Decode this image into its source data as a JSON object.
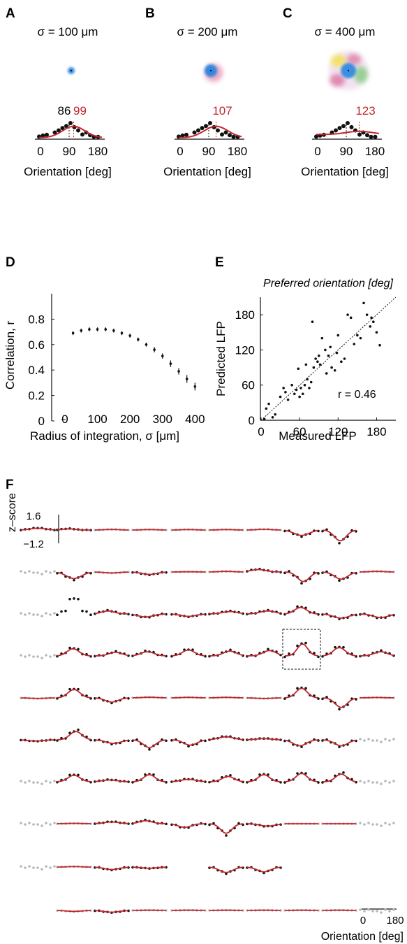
{
  "colors": {
    "fit": "#c0272d",
    "data": "#111111",
    "excluded": "#b8b8b8",
    "pref_line_measured": "#111111",
    "pref_line_predicted": "#c0272d",
    "rf_blue": "#2a86e0",
    "rf_magenta": "#d0427a",
    "rf_yellow": "#f2e24a",
    "rf_green": "#5fc25a"
  },
  "panels_abc": [
    {
      "letter": "A",
      "title": "σ = 100 μm",
      "measured_pref": "86",
      "predicted_pref": "99",
      "measured_pref_value": 86,
      "predicted_pref_value": 99,
      "x_ticks": [
        "0",
        "90",
        "180"
      ],
      "xlabel": "Orientation [deg]",
      "rf_spread": 0.15,
      "fit_baseline": 0.0,
      "fit_amplitude": 0.78,
      "fit_width_deg": 32
    },
    {
      "letter": "B",
      "title": "σ = 200 μm",
      "measured_pref": "",
      "predicted_pref": "107",
      "measured_pref_value": 86,
      "predicted_pref_value": 107,
      "x_ticks": [
        "0",
        "90",
        "180"
      ],
      "xlabel": "Orientation [deg]",
      "rf_spread": 0.4,
      "fit_baseline": 0.0,
      "fit_amplitude": 0.78,
      "fit_width_deg": 34
    },
    {
      "letter": "C",
      "title": "σ = 400 μm",
      "measured_pref": "",
      "predicted_pref": "123",
      "measured_pref_value": 86,
      "predicted_pref_value": 123,
      "x_ticks": [
        "0",
        "90",
        "180"
      ],
      "xlabel": "Orientation [deg]",
      "rf_spread": 1.0,
      "fit_baseline": 0.22,
      "fit_amplitude": 0.22,
      "fit_width_deg": 38
    }
  ],
  "tuning_points_abc": [
    {
      "x": 0,
      "y": 0.08
    },
    {
      "x": 11,
      "y": 0.15
    },
    {
      "x": 22,
      "y": 0.2
    },
    {
      "x": 45,
      "y": 0.36
    },
    {
      "x": 56,
      "y": 0.5
    },
    {
      "x": 67,
      "y": 0.66
    },
    {
      "x": 78,
      "y": 0.8
    },
    {
      "x": 90,
      "y": 1.0
    },
    {
      "x": 101,
      "y": 0.72
    },
    {
      "x": 112,
      "y": 0.5
    },
    {
      "x": 124,
      "y": 0.22
    },
    {
      "x": 135,
      "y": 0.36
    },
    {
      "x": 146,
      "y": 0.18
    },
    {
      "x": 157,
      "y": 0.06
    },
    {
      "x": 169,
      "y": 0.06
    }
  ],
  "chart_data": [
    {
      "panel": "D",
      "type": "scatter",
      "xlabel": "Radius of integration, σ [μm]",
      "ylabel": "Correlation, r",
      "xlim": [
        0,
        425
      ],
      "ylim": [
        0,
        1.0
      ],
      "x_ticks": [
        "0",
        "100",
        "200",
        "300",
        "400"
      ],
      "y_ticks": [
        "0",
        "0.2",
        "0.4",
        "0.6",
        "0.8"
      ],
      "series": [
        {
          "x": [
            25,
            50,
            75,
            100,
            125,
            150,
            175,
            200,
            225,
            250,
            275,
            300,
            325,
            350,
            375,
            400
          ],
          "y": [
            0.69,
            0.71,
            0.72,
            0.72,
            0.72,
            0.71,
            0.69,
            0.67,
            0.64,
            0.6,
            0.56,
            0.51,
            0.45,
            0.39,
            0.33,
            0.27
          ],
          "err": [
            0.01,
            0.01,
            0.01,
            0.01,
            0.01,
            0.01,
            0.01,
            0.01,
            0.01,
            0.01,
            0.015,
            0.015,
            0.02,
            0.02,
            0.025,
            0.025
          ]
        }
      ]
    },
    {
      "panel": "E",
      "type": "scatter",
      "title": "Preferred orientation [deg]",
      "xlabel": "Measured LFP",
      "ylabel": "Predicted LFP",
      "annotation": "r = 0.46",
      "xlim": [
        0,
        210
      ],
      "ylim": [
        0,
        210
      ],
      "x_ticks": [
        "0",
        "60",
        "120",
        "180"
      ],
      "y_ticks": [
        "0",
        "60",
        "120",
        "180"
      ],
      "series": [
        {
          "x": [
            5,
            8,
            12,
            18,
            22,
            30,
            35,
            38,
            42,
            48,
            52,
            55,
            58,
            60,
            62,
            65,
            68,
            70,
            72,
            75,
            78,
            80,
            82,
            85,
            88,
            90,
            92,
            95,
            100,
            102,
            105,
            108,
            110,
            115,
            118,
            120,
            125,
            130,
            135,
            140,
            145,
            150,
            155,
            160,
            165,
            170,
            172,
            175,
            180,
            185
          ],
          "y": [
            2,
            20,
            28,
            5,
            10,
            40,
            55,
            48,
            35,
            60,
            45,
            52,
            88,
            40,
            55,
            45,
            60,
            95,
            70,
            55,
            65,
            168,
            90,
            105,
            100,
            110,
            95,
            140,
            120,
            80,
            110,
            125,
            90,
            85,
            115,
            145,
            100,
            105,
            180,
            175,
            130,
            145,
            140,
            200,
            180,
            160,
            175,
            168,
            150,
            128
          ]
        }
      ],
      "identity_line": true
    },
    {
      "panel": "F",
      "type": "line",
      "ylabel": "z–score",
      "y_scale_ticks": [
        "1.6",
        "−1.2"
      ],
      "x_scale_ticks": [
        "0",
        "180"
      ],
      "xlabel": "Orientation [deg]",
      "grid_rows": 10,
      "grid_cols": 10,
      "cells": [
        [
          {
            "c": 1,
            "a": 0.15,
            "p": 90,
            "w": 40
          },
          {
            "c": 1,
            "a": 0.1,
            "p": 60,
            "w": 35
          },
          {
            "c": 1,
            "a": 0.05,
            "p": 90,
            "w": 40
          },
          {
            "c": 1,
            "a": 0.04,
            "p": 90,
            "w": 40
          },
          {
            "c": 1,
            "a": 0.04,
            "p": 90,
            "w": 40
          },
          {
            "c": 1,
            "a": 0.04,
            "p": 90,
            "w": 40
          },
          {
            "c": 1,
            "a": 0.06,
            "p": 90,
            "w": 40
          },
          {
            "c": 1,
            "a": -0.45,
            "p": 90,
            "w": 40
          },
          {
            "c": 1,
            "a": -0.9,
            "p": 95,
            "w": 32
          },
          {
            "c": 3,
            "a": 0,
            "p": 90,
            "w": 40
          }
        ],
        [
          {
            "c": 2,
            "a": 0,
            "p": 90,
            "w": 40
          },
          {
            "c": 1,
            "a": -0.55,
            "p": 90,
            "w": 40
          },
          {
            "c": 1,
            "a": -0.08,
            "p": 90,
            "w": 40
          },
          {
            "c": 1,
            "a": -0.2,
            "p": 90,
            "w": 40
          },
          {
            "c": 1,
            "a": 0.02,
            "p": 90,
            "w": 40
          },
          {
            "c": 1,
            "a": 0.05,
            "p": 90,
            "w": 40
          },
          {
            "c": 1,
            "a": 0.2,
            "p": 60,
            "w": 40
          },
          {
            "c": 1,
            "a": -0.8,
            "p": 100,
            "w": 32
          },
          {
            "c": 1,
            "a": -0.6,
            "p": 100,
            "w": 35
          },
          {
            "c": 1,
            "a": 0.05,
            "p": 90,
            "w": 40
          }
        ],
        [
          {
            "c": 2,
            "a": 0,
            "p": 90,
            "w": 40
          },
          {
            "c": 4,
            "a": 0.9,
            "p": 90,
            "w": 30
          },
          {
            "c": 1,
            "a": 0.25,
            "p": 70,
            "w": 35
          },
          {
            "c": 1,
            "a": -0.25,
            "p": 70,
            "w": 40
          },
          {
            "c": 1,
            "a": -0.2,
            "p": 90,
            "w": 40
          },
          {
            "c": 1,
            "a": 0.2,
            "p": 110,
            "w": 40
          },
          {
            "c": 1,
            "a": 0.25,
            "p": 110,
            "w": 40
          },
          {
            "c": 1,
            "a": 0.55,
            "p": 85,
            "w": 32
          },
          {
            "c": 1,
            "a": -0.35,
            "p": 100,
            "w": 40
          },
          {
            "c": 1,
            "a": -0.3,
            "p": 110,
            "w": 40
          }
        ],
        [
          {
            "c": 2,
            "a": 0,
            "p": 90,
            "w": 40
          },
          {
            "c": 1,
            "a": 0.6,
            "p": 85,
            "w": 32
          },
          {
            "c": 1,
            "a": 0.3,
            "p": 110,
            "w": 35
          },
          {
            "c": 1,
            "a": 0.35,
            "p": 80,
            "w": 35
          },
          {
            "c": 1,
            "a": 0.5,
            "p": 90,
            "w": 32
          },
          {
            "c": 1,
            "a": 0.4,
            "p": 110,
            "w": 35
          },
          {
            "c": 1,
            "a": 0.45,
            "p": 120,
            "w": 35
          },
          {
            "c": 5,
            "a": 1.0,
            "p": 95,
            "w": 28
          },
          {
            "c": 1,
            "a": 0.7,
            "p": 90,
            "w": 32
          },
          {
            "c": 1,
            "a": 0.35,
            "p": 110,
            "w": 35
          }
        ],
        [
          {
            "c": 1,
            "a": -0.05,
            "p": 90,
            "w": 40
          },
          {
            "c": 1,
            "a": 0.7,
            "p": 90,
            "w": 32
          },
          {
            "c": 1,
            "a": -0.35,
            "p": 90,
            "w": 35
          },
          {
            "c": 1,
            "a": 0.05,
            "p": 90,
            "w": 40
          },
          {
            "c": 1,
            "a": 0.04,
            "p": 90,
            "w": 40
          },
          {
            "c": 1,
            "a": 0.04,
            "p": 90,
            "w": 40
          },
          {
            "c": 1,
            "a": -0.05,
            "p": 90,
            "w": 40
          },
          {
            "c": 1,
            "a": 0.8,
            "p": 90,
            "w": 30
          },
          {
            "c": 1,
            "a": -0.8,
            "p": 100,
            "w": 32
          },
          {
            "c": 1,
            "a": 0.03,
            "p": 90,
            "w": 40
          }
        ],
        [
          {
            "c": 1,
            "a": -0.1,
            "p": 80,
            "w": 40
          },
          {
            "c": 1,
            "a": 0.7,
            "p": 100,
            "w": 32
          },
          {
            "c": 1,
            "a": -0.3,
            "p": 100,
            "w": 40
          },
          {
            "c": 1,
            "a": -0.65,
            "p": 90,
            "w": 32
          },
          {
            "c": 1,
            "a": -0.45,
            "p": 100,
            "w": 35
          },
          {
            "c": 1,
            "a": 0.25,
            "p": 90,
            "w": 40
          },
          {
            "c": 1,
            "a": 0.1,
            "p": 90,
            "w": 40
          },
          {
            "c": 1,
            "a": -0.5,
            "p": 80,
            "w": 35
          },
          {
            "c": 1,
            "a": -0.5,
            "p": 100,
            "w": 35
          },
          {
            "c": 2,
            "a": 0,
            "p": 90,
            "w": 40
          }
        ],
        [
          {
            "c": 2,
            "a": 0,
            "p": 90,
            "w": 40
          },
          {
            "c": 1,
            "a": 0.55,
            "p": 90,
            "w": 32
          },
          {
            "c": 1,
            "a": 0.15,
            "p": 80,
            "w": 40
          },
          {
            "c": 1,
            "a": 0.6,
            "p": 90,
            "w": 30
          },
          {
            "c": 1,
            "a": 0.2,
            "p": 90,
            "w": 40
          },
          {
            "c": 1,
            "a": 0.45,
            "p": 100,
            "w": 32
          },
          {
            "c": 1,
            "a": 0.6,
            "p": 90,
            "w": 30
          },
          {
            "c": 1,
            "a": 0.7,
            "p": 90,
            "w": 30
          },
          {
            "c": 1,
            "a": 0.65,
            "p": 100,
            "w": 30
          },
          {
            "c": 2,
            "a": 0,
            "p": 90,
            "w": 40
          }
        ],
        [
          {
            "c": 2,
            "a": 0,
            "p": 90,
            "w": 40
          },
          {
            "c": 1,
            "a": 0.03,
            "p": 90,
            "w": 40
          },
          {
            "c": 1,
            "a": 0.15,
            "p": 90,
            "w": 40
          },
          {
            "c": 1,
            "a": 0.25,
            "p": 70,
            "w": 35
          },
          {
            "c": 1,
            "a": -0.3,
            "p": 70,
            "w": 35
          },
          {
            "c": 1,
            "a": -0.8,
            "p": 90,
            "w": 30
          },
          {
            "c": 1,
            "a": -0.2,
            "p": 110,
            "w": 40
          },
          {
            "c": 1,
            "a": 0.0,
            "p": 90,
            "w": 40
          },
          {
            "c": 1,
            "a": 0.0,
            "p": 90,
            "w": 40
          },
          {
            "c": 2,
            "a": 0,
            "p": 90,
            "w": 40
          }
        ],
        [
          {
            "c": 2,
            "a": 0,
            "p": 90,
            "w": 40
          },
          {
            "c": 1,
            "a": 0.04,
            "p": 90,
            "w": 40
          },
          {
            "c": 1,
            "a": -0.2,
            "p": 90,
            "w": 40
          },
          {
            "c": 1,
            "a": -0.1,
            "p": 90,
            "w": 40
          },
          {
            "c": 0,
            "a": 0,
            "p": 90,
            "w": 40
          },
          {
            "c": 1,
            "a": -0.45,
            "p": 90,
            "w": 35
          },
          {
            "c": 1,
            "a": -0.4,
            "p": 90,
            "w": 35
          },
          {
            "c": 0,
            "a": 0,
            "p": 90,
            "w": 40
          },
          {
            "c": 0,
            "a": 0,
            "p": 90,
            "w": 40
          },
          {
            "c": 0,
            "a": 0,
            "p": 90,
            "w": 40
          }
        ],
        [
          {
            "c": 0,
            "a": 0,
            "p": 90,
            "w": 40
          },
          {
            "c": 1,
            "a": -0.08,
            "p": 90,
            "w": 40
          },
          {
            "c": 1,
            "a": -0.15,
            "p": 90,
            "w": 40
          },
          {
            "c": 1,
            "a": 0.02,
            "p": 90,
            "w": 40
          },
          {
            "c": 1,
            "a": 0.02,
            "p": 90,
            "w": 40
          },
          {
            "c": 1,
            "a": 0.02,
            "p": 90,
            "w": 40
          },
          {
            "c": 1,
            "a": 0.02,
            "p": 90,
            "w": 40
          },
          {
            "c": 1,
            "a": 0.02,
            "p": 90,
            "w": 40
          },
          {
            "c": 1,
            "a": 0.02,
            "p": 90,
            "w": 40
          },
          {
            "c": 2,
            "a": 0,
            "p": 90,
            "w": 40
          }
        ]
      ]
    }
  ],
  "panel_labels": {
    "D": "D",
    "E": "E",
    "F": "F"
  }
}
